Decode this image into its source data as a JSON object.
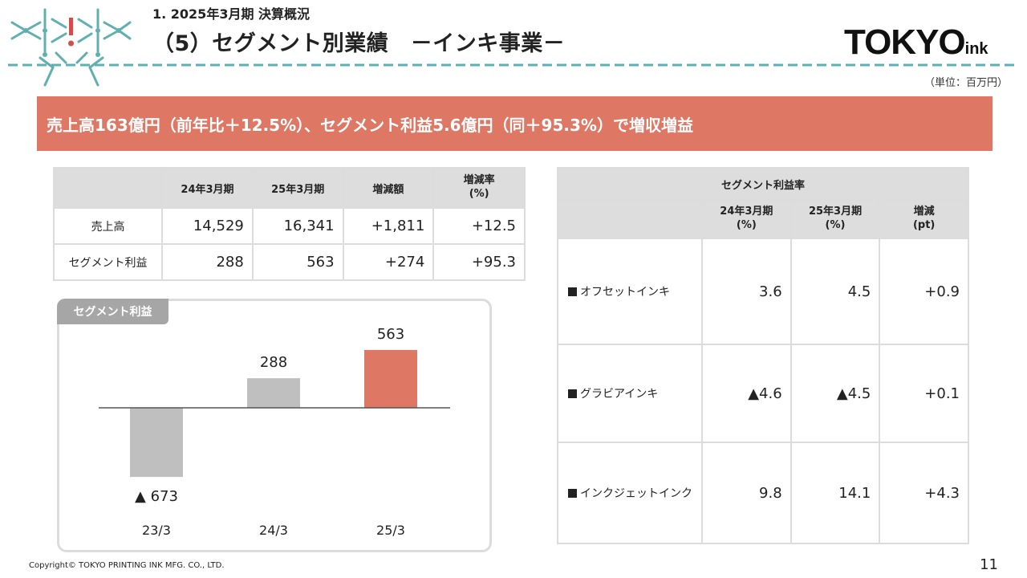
{
  "header": {
    "section": "1. 2025年3月期 決算概況",
    "title": "（5）セグメント別業績　－インキ事業－",
    "brand_main": "TOKYO",
    "brand_sub": "ink",
    "unit": "（単位：百万円）",
    "accent_color": "#5fb0ae"
  },
  "banner": {
    "text": "売上高163億円（前年比＋12.5%）、セグメント利益5.6億円（同＋95.3%）で増収増益",
    "color": "#de7764"
  },
  "sales_table": {
    "headers": [
      "",
      "24年3月期",
      "25年3月期",
      "増減額",
      "増減率\n(%)"
    ],
    "rows": [
      {
        "label": "売上高",
        "values": [
          "14,529",
          "16,341",
          "+1,811",
          "+12.5"
        ]
      },
      {
        "label": "セグメント利益",
        "values": [
          "288",
          "563",
          "+274",
          "+95.3"
        ]
      }
    ]
  },
  "rate_table": {
    "title": "セグメント利益率",
    "headers": [
      "",
      "24年3月期\n(%)",
      "25年3月期\n(%)",
      "増減\n(pt)"
    ],
    "rows": [
      {
        "label": "オフセットインキ",
        "values": [
          "3.6",
          "4.5",
          "+0.9"
        ]
      },
      {
        "label": "グラビアインキ",
        "values": [
          "▲4.6",
          "▲4.5",
          "+0.1"
        ]
      },
      {
        "label": "インクジェットインク",
        "values": [
          "9.8",
          "14.1",
          "+4.3"
        ]
      }
    ]
  },
  "chart_data": {
    "type": "bar",
    "title": "セグメント利益",
    "categories": [
      "23/3",
      "24/3",
      "25/3"
    ],
    "values": [
      -673,
      288,
      563
    ],
    "data_labels": [
      "▲ 673",
      "288",
      "563"
    ],
    "colors": [
      "#bfbfbf",
      "#bfbfbf",
      "#de7764"
    ],
    "ylim": [
      -750,
      650
    ],
    "grid": false
  },
  "footer": {
    "copyright": "Copyright© TOKYO PRINTING INK MFG. CO., LTD.",
    "page": "11"
  }
}
